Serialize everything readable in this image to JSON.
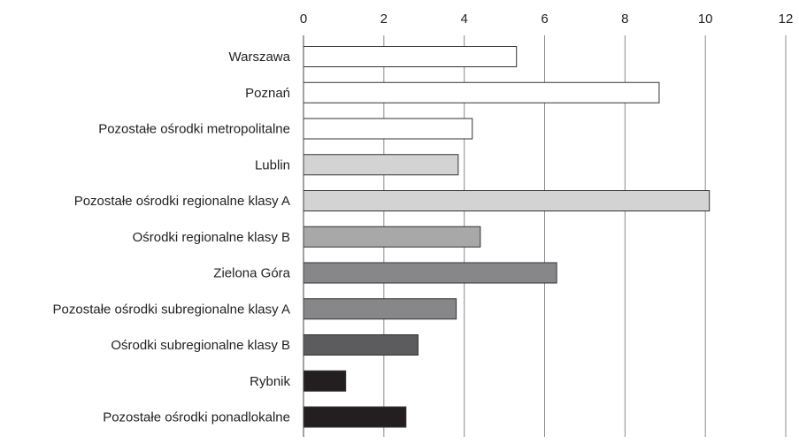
{
  "chart_data": {
    "type": "bar",
    "orientation": "horizontal",
    "title": "",
    "xlabel": "",
    "ylabel": "",
    "xlim": [
      0,
      12
    ],
    "x_ticks": [
      "0",
      "2",
      "4",
      "6",
      "8",
      "10",
      "12"
    ],
    "x_axis_position": "top",
    "grid": true,
    "legend": "none",
    "categories": [
      "Warszawa",
      "Poznań",
      "Pozostałe ośrodki metropolitalne",
      "Lublin",
      "Pozostałe ośrodki regionalne klasy A",
      "Ośrodki regionalne klasy B",
      "Zielona Góra",
      "Pozostałe ośrodki subregionalne klasy A",
      "Ośrodki subregionalne klasy B",
      "Rybnik",
      "Pozostałe ośrodki ponadlokalne"
    ],
    "values": [
      5.3,
      8.85,
      4.2,
      3.85,
      10.1,
      4.4,
      6.3,
      3.8,
      2.85,
      1.05,
      2.55
    ],
    "colors": [
      "#ffffff",
      "#ffffff",
      "#ffffff",
      "#d3d3d3",
      "#d3d3d3",
      "#a8a8a8",
      "#87878a",
      "#87878a",
      "#5c5c5e",
      "#231f20",
      "#231f20"
    ]
  }
}
